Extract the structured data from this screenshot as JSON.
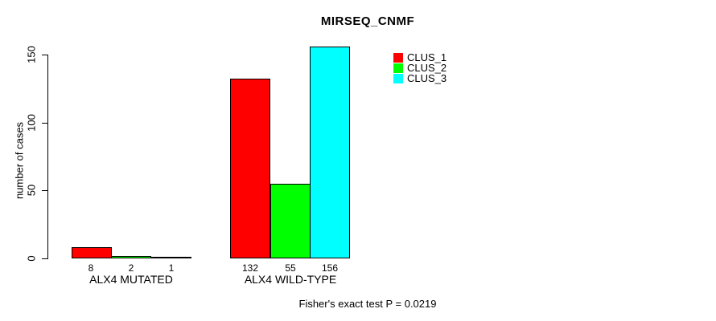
{
  "chart_data": {
    "type": "bar",
    "title": "MIRSEQ_CNMF",
    "ylabel": "number of cases",
    "xlabel": "",
    "categories": [
      "ALX4 MUTATED",
      "ALX4 WILD-TYPE"
    ],
    "series": [
      {
        "name": "CLUS_1",
        "color": "#ff0000",
        "values": [
          8,
          132
        ]
      },
      {
        "name": "CLUS_2",
        "color": "#00ff00",
        "values": [
          2,
          55
        ]
      },
      {
        "name": "CLUS_3",
        "color": "#00ffff",
        "values": [
          1,
          156
        ]
      }
    ],
    "yticks": [
      0,
      50,
      100,
      150
    ],
    "ylim": [
      0,
      156
    ],
    "grid": false,
    "bar_value_labels_shown": true,
    "legend_position": "top-right",
    "footnote": "Fisher's exact test P = 0.0219",
    "background_color": "#ffffff",
    "axis_color": "#000000"
  }
}
